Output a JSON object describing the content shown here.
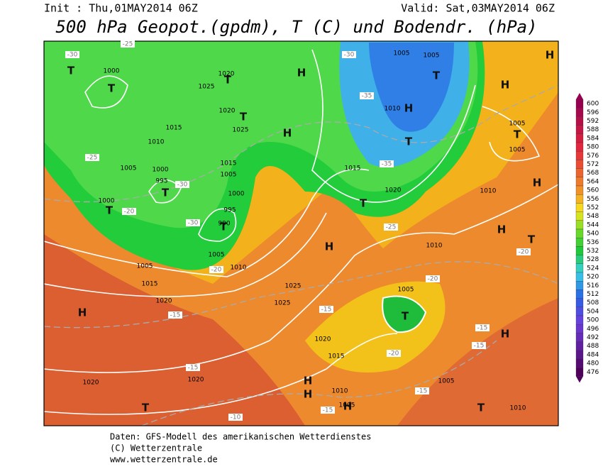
{
  "header": {
    "init": "Init : Thu,01MAY2014 06Z",
    "valid": "Valid: Sat,03MAY2014 06Z",
    "title": "500 hPa Geopot.(gpdm), T (C) und Bodendr. (hPa)"
  },
  "colorbar": {
    "labels": [
      "600",
      "596",
      "592",
      "588",
      "584",
      "580",
      "576",
      "572",
      "568",
      "564",
      "560",
      "556",
      "552",
      "548",
      "544",
      "540",
      "536",
      "532",
      "528",
      "524",
      "520",
      "516",
      "512",
      "508",
      "504",
      "500",
      "496",
      "492",
      "488",
      "484",
      "480",
      "476"
    ]
  },
  "map": {
    "centers": [
      "H",
      "H",
      "H",
      "H",
      "H",
      "H",
      "H",
      "H",
      "H",
      "H",
      "H",
      "H",
      "H",
      "T",
      "T",
      "T",
      "T",
      "T",
      "T",
      "T",
      "T",
      "T",
      "T",
      "T",
      "T",
      "T",
      "T",
      "T"
    ],
    "isobars": [
      "1000",
      "995",
      "1000",
      "1000",
      "1005",
      "1010",
      "1015",
      "1020",
      "1025",
      "1020",
      "1025",
      "1015",
      "1005",
      "1000",
      "995",
      "990",
      "1005",
      "1010",
      "1005",
      "1015",
      "1020",
      "1025",
      "1025",
      "1015",
      "1020",
      "1010",
      "1005",
      "1005",
      "1010",
      "1005",
      "1005",
      "1010",
      "1005",
      "1020",
      "1015",
      "1020",
      "1020",
      "1010",
      "1005",
      "1005",
      "1010"
    ],
    "temperatures": [
      "-30",
      "-25",
      "-25",
      "-30",
      "-20",
      "-30",
      "-20",
      "-30",
      "-35",
      "-35",
      "-25",
      "-20",
      "-20",
      "-15",
      "-15",
      "-20",
      "-15",
      "-15",
      "-15",
      "-15",
      "-15",
      "-10"
    ]
  },
  "footer": {
    "line1": "Daten: GFS-Modell des amerikanischen Wetterdienstes",
    "line2": "(C) Wetterzentrale",
    "line3": "www.wetterzentrale.de"
  }
}
